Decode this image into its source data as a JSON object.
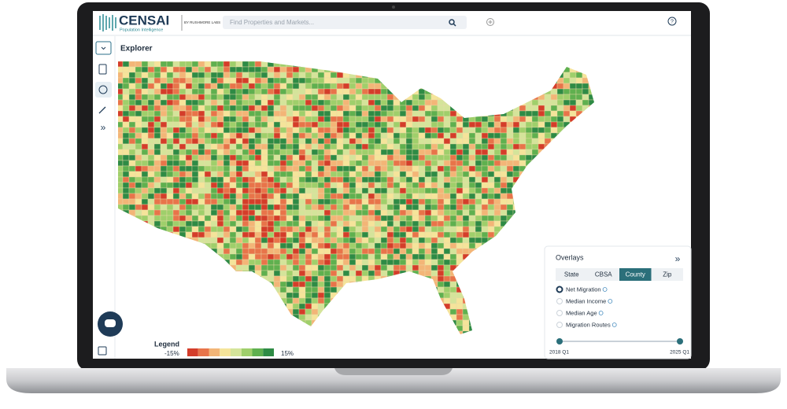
{
  "header": {
    "brand": "CENSAI",
    "tagline": "Population Intelligence",
    "byline": "BY RUSHMORE LABS",
    "search_placeholder": "Find Properties and Markets..."
  },
  "page_title": "Explorer",
  "legend": {
    "title": "Legend",
    "min_label": "-15%",
    "max_label": "15%",
    "colors": [
      "#d43d2a",
      "#e8744a",
      "#f3b577",
      "#f5e49a",
      "#d4e49a",
      "#9fcf6b",
      "#5fb04f",
      "#2e8b45"
    ]
  },
  "overlays": {
    "title": "Overlays",
    "tabs": [
      "State",
      "CBSA",
      "County",
      "Zip"
    ],
    "active_tab": "County",
    "options": [
      "Net Migration",
      "Median Income",
      "Median Age",
      "Migration Routes"
    ],
    "selected_option": "Net Migration",
    "timeline": {
      "start": "2018 Q1",
      "end": "2025 Q1"
    }
  }
}
